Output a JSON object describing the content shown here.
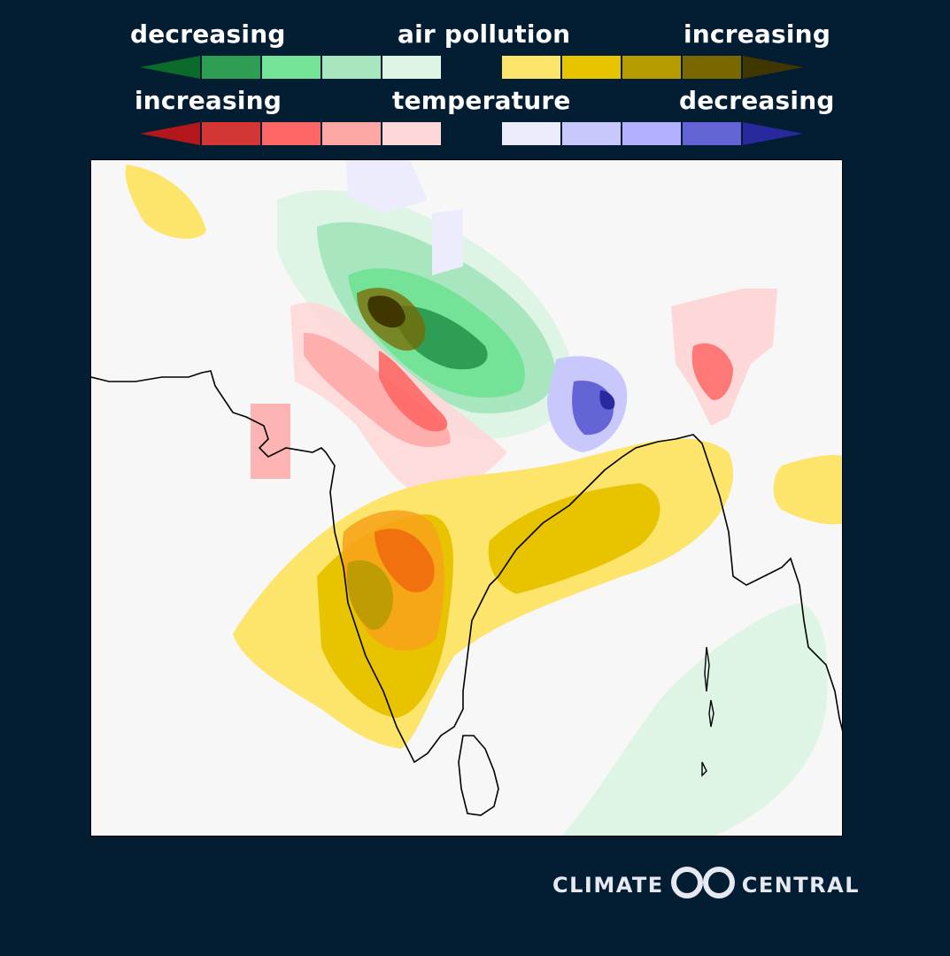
{
  "legend": {
    "pollution": {
      "left_label": "decreasing",
      "center_label": "air pollution",
      "right_label": "increasing",
      "decreasing_colors": [
        "#0b6b2a",
        "#2f9e55",
        "#74e398",
        "#a8e6c0",
        "#def5e6"
      ],
      "increasing_colors": [
        "#fde46a",
        "#e8c300",
        "#b59a00",
        "#7a6700",
        "#3f3600"
      ]
    },
    "temperature": {
      "left_label": "increasing",
      "center_label": "temperature",
      "right_label": "decreasing",
      "increasing_colors": [
        "#b3161b",
        "#d43535",
        "#fd6765",
        "#fea8a6",
        "#fed8d8"
      ],
      "decreasing_colors": [
        "#ececfd",
        "#c8c8fd",
        "#b1b1fd",
        "#6464d6",
        "#29299e"
      ]
    }
  },
  "brand": {
    "left_word": "CLIMATE",
    "right_word": "CENTRAL"
  }
}
